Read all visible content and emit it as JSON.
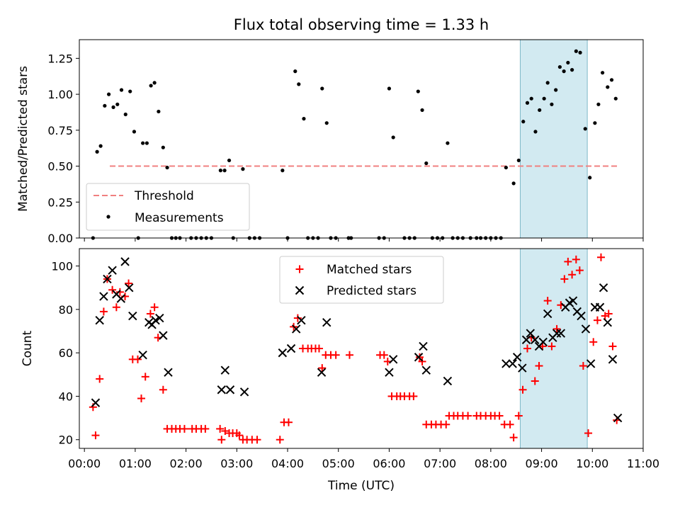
{
  "chart_data": [
    {
      "type": "scatter",
      "title": "Flux total observing time = 1.33 h",
      "ylabel": "Matched/Predicted stars",
      "ylim": [
        0,
        1.38
      ],
      "yticks": [
        "0.00",
        "0.25",
        "0.50",
        "0.75",
        "1.00",
        "1.25"
      ],
      "xlim": [
        -0.1,
        11.0
      ],
      "x_unit": "hours UTC",
      "threshold": {
        "name": "Threshold",
        "value": 0.5,
        "x_range": [
          0.5,
          10.5
        ],
        "color": "#f08080"
      },
      "highlight_span": {
        "x_range": [
          8.58,
          9.9
        ],
        "color": "#add8e6"
      },
      "legend_position": "lower-left",
      "series": [
        {
          "name": "Measurements",
          "color": "#000000",
          "marker": "dot",
          "points": [
            [
              0.17,
              0.0
            ],
            [
              0.25,
              0.6
            ],
            [
              0.32,
              0.64
            ],
            [
              0.4,
              0.92
            ],
            [
              0.48,
              1.0
            ],
            [
              0.57,
              0.91
            ],
            [
              0.65,
              0.93
            ],
            [
              0.73,
              1.03
            ],
            [
              0.81,
              0.86
            ],
            [
              0.9,
              1.02
            ],
            [
              0.98,
              0.74
            ],
            [
              1.06,
              0.0
            ],
            [
              1.15,
              0.66
            ],
            [
              1.23,
              0.66
            ],
            [
              1.31,
              1.06
            ],
            [
              1.38,
              1.08
            ],
            [
              1.46,
              0.88
            ],
            [
              1.55,
              0.63
            ],
            [
              1.63,
              0.49
            ],
            [
              1.72,
              0.0
            ],
            [
              1.8,
              0.0
            ],
            [
              1.88,
              0.0
            ],
            [
              2.1,
              0.0
            ],
            [
              2.2,
              0.0
            ],
            [
              2.3,
              0.0
            ],
            [
              2.4,
              0.0
            ],
            [
              2.5,
              0.0
            ],
            [
              2.68,
              0.47
            ],
            [
              2.76,
              0.47
            ],
            [
              2.85,
              0.54
            ],
            [
              2.93,
              0.0
            ],
            [
              3.12,
              0.48
            ],
            [
              3.25,
              0.0
            ],
            [
              3.35,
              0.0
            ],
            [
              3.45,
              0.0
            ],
            [
              3.9,
              0.47
            ],
            [
              4.0,
              0.0
            ],
            [
              4.15,
              1.16
            ],
            [
              4.22,
              1.07
            ],
            [
              4.32,
              0.83
            ],
            [
              4.4,
              0.0
            ],
            [
              4.5,
              0.0
            ],
            [
              4.6,
              0.0
            ],
            [
              4.68,
              1.04
            ],
            [
              4.77,
              0.8
            ],
            [
              4.85,
              0.0
            ],
            [
              4.95,
              0.0
            ],
            [
              5.2,
              0.0
            ],
            [
              5.25,
              0.0
            ],
            [
              5.8,
              0.0
            ],
            [
              5.9,
              0.0
            ],
            [
              6.0,
              1.04
            ],
            [
              6.08,
              0.7
            ],
            [
              6.3,
              0.0
            ],
            [
              6.4,
              0.0
            ],
            [
              6.5,
              0.0
            ],
            [
              6.57,
              1.02
            ],
            [
              6.65,
              0.89
            ],
            [
              6.73,
              0.52
            ],
            [
              6.85,
              0.0
            ],
            [
              6.95,
              0.0
            ],
            [
              7.05,
              0.0
            ],
            [
              7.15,
              0.66
            ],
            [
              7.25,
              0.0
            ],
            [
              7.35,
              0.0
            ],
            [
              7.45,
              0.0
            ],
            [
              7.6,
              0.0
            ],
            [
              7.72,
              0.0
            ],
            [
              7.8,
              0.0
            ],
            [
              7.9,
              0.0
            ],
            [
              8.0,
              0.0
            ],
            [
              8.1,
              0.0
            ],
            [
              8.2,
              0.0
            ],
            [
              8.3,
              0.49
            ],
            [
              8.45,
              0.38
            ],
            [
              8.55,
              0.54
            ],
            [
              8.64,
              0.81
            ],
            [
              8.72,
              0.94
            ],
            [
              8.8,
              0.97
            ],
            [
              8.88,
              0.74
            ],
            [
              8.96,
              0.89
            ],
            [
              9.05,
              0.97
            ],
            [
              9.12,
              1.08
            ],
            [
              9.2,
              0.93
            ],
            [
              9.28,
              1.03
            ],
            [
              9.36,
              1.19
            ],
            [
              9.44,
              1.16
            ],
            [
              9.52,
              1.22
            ],
            [
              9.6,
              1.17
            ],
            [
              9.68,
              1.3
            ],
            [
              9.76,
              1.29
            ],
            [
              9.86,
              0.76
            ],
            [
              9.95,
              0.42
            ],
            [
              10.05,
              0.8
            ],
            [
              10.12,
              0.93
            ],
            [
              10.2,
              1.15
            ],
            [
              10.3,
              1.05
            ],
            [
              10.38,
              1.1
            ],
            [
              10.46,
              0.97
            ]
          ]
        }
      ]
    },
    {
      "type": "scatter",
      "title": "",
      "xlabel": "Time (UTC)",
      "ylabel": "Count",
      "ylim": [
        16,
        108
      ],
      "yticks": [
        "20",
        "40",
        "60",
        "80",
        "100"
      ],
      "xlim": [
        -0.1,
        11.0
      ],
      "xticks": [
        "00:00",
        "01:00",
        "02:00",
        "03:00",
        "04:00",
        "05:00",
        "06:00",
        "07:00",
        "08:00",
        "09:00",
        "10:00",
        "11:00"
      ],
      "x_unit": "hours UTC",
      "highlight_span": {
        "x_range": [
          8.58,
          9.9
        ],
        "color": "#add8e6"
      },
      "legend_position": "upper-center",
      "series": [
        {
          "name": "Matched stars",
          "color": "#ff0000",
          "marker": "plus",
          "points": [
            [
              0.17,
              35
            ],
            [
              0.22,
              22
            ],
            [
              0.3,
              48
            ],
            [
              0.38,
              79
            ],
            [
              0.45,
              94
            ],
            [
              0.55,
              89
            ],
            [
              0.63,
              81
            ],
            [
              0.7,
              88
            ],
            [
              0.8,
              86
            ],
            [
              0.87,
              92
            ],
            [
              0.95,
              57
            ],
            [
              1.05,
              57
            ],
            [
              1.12,
              39
            ],
            [
              1.2,
              49
            ],
            [
              1.3,
              78
            ],
            [
              1.38,
              81
            ],
            [
              1.45,
              67
            ],
            [
              1.55,
              43
            ],
            [
              1.63,
              25
            ],
            [
              1.72,
              25
            ],
            [
              1.8,
              25
            ],
            [
              1.88,
              25
            ],
            [
              1.97,
              25
            ],
            [
              2.12,
              25
            ],
            [
              2.2,
              25
            ],
            [
              2.3,
              25
            ],
            [
              2.38,
              25
            ],
            [
              2.67,
              25
            ],
            [
              2.7,
              20
            ],
            [
              2.77,
              24
            ],
            [
              2.85,
              23
            ],
            [
              2.92,
              23
            ],
            [
              3.0,
              23
            ],
            [
              3.05,
              22
            ],
            [
              3.12,
              20
            ],
            [
              3.2,
              20
            ],
            [
              3.3,
              20
            ],
            [
              3.4,
              20
            ],
            [
              3.85,
              20
            ],
            [
              3.93,
              28
            ],
            [
              4.02,
              28
            ],
            [
              4.12,
              72
            ],
            [
              4.2,
              76
            ],
            [
              4.3,
              62
            ],
            [
              4.4,
              62
            ],
            [
              4.47,
              62
            ],
            [
              4.55,
              62
            ],
            [
              4.62,
              62
            ],
            [
              4.68,
              53
            ],
            [
              4.75,
              59
            ],
            [
              4.85,
              59
            ],
            [
              4.95,
              59
            ],
            [
              5.22,
              59
            ],
            [
              5.82,
              59
            ],
            [
              5.9,
              59
            ],
            [
              5.97,
              56
            ],
            [
              6.05,
              40
            ],
            [
              6.15,
              40
            ],
            [
              6.22,
              40
            ],
            [
              6.3,
              40
            ],
            [
              6.4,
              40
            ],
            [
              6.48,
              40
            ],
            [
              6.6,
              58
            ],
            [
              6.65,
              56
            ],
            [
              6.73,
              27
            ],
            [
              6.83,
              27
            ],
            [
              6.92,
              27
            ],
            [
              7.02,
              27
            ],
            [
              7.12,
              27
            ],
            [
              7.18,
              31
            ],
            [
              7.27,
              31
            ],
            [
              7.35,
              31
            ],
            [
              7.45,
              31
            ],
            [
              7.55,
              31
            ],
            [
              7.72,
              31
            ],
            [
              7.8,
              31
            ],
            [
              7.9,
              31
            ],
            [
              8.0,
              31
            ],
            [
              8.08,
              31
            ],
            [
              8.17,
              31
            ],
            [
              8.27,
              27
            ],
            [
              8.38,
              27
            ],
            [
              8.45,
              21
            ],
            [
              8.55,
              31
            ],
            [
              8.63,
              43
            ],
            [
              8.72,
              62
            ],
            [
              8.8,
              67
            ],
            [
              8.87,
              47
            ],
            [
              8.95,
              54
            ],
            [
              9.02,
              63
            ],
            [
              9.12,
              84
            ],
            [
              9.2,
              63
            ],
            [
              9.3,
              71
            ],
            [
              9.38,
              82
            ],
            [
              9.45,
              94
            ],
            [
              9.52,
              102
            ],
            [
              9.6,
              96
            ],
            [
              9.68,
              103
            ],
            [
              9.75,
              98
            ],
            [
              9.82,
              54
            ],
            [
              9.92,
              23
            ],
            [
              10.02,
              65
            ],
            [
              10.1,
              75
            ],
            [
              10.17,
              104
            ],
            [
              10.25,
              77
            ],
            [
              10.32,
              78
            ],
            [
              10.4,
              63
            ],
            [
              10.48,
              29
            ]
          ]
        },
        {
          "name": "Predicted stars",
          "color": "#000000",
          "marker": "cross",
          "points": [
            [
              0.22,
              37
            ],
            [
              0.3,
              75
            ],
            [
              0.38,
              86
            ],
            [
              0.45,
              94
            ],
            [
              0.55,
              98
            ],
            [
              0.63,
              87
            ],
            [
              0.72,
              85
            ],
            [
              0.8,
              102
            ],
            [
              0.88,
              90
            ],
            [
              0.95,
              77
            ],
            [
              1.15,
              59
            ],
            [
              1.27,
              74
            ],
            [
              1.33,
              73
            ],
            [
              1.4,
              75
            ],
            [
              1.48,
              76
            ],
            [
              1.55,
              68
            ],
            [
              1.65,
              51
            ],
            [
              2.7,
              43
            ],
            [
              2.77,
              52
            ],
            [
              2.87,
              43
            ],
            [
              3.15,
              42
            ],
            [
              3.9,
              60
            ],
            [
              4.07,
              62
            ],
            [
              4.17,
              71
            ],
            [
              4.27,
              75
            ],
            [
              4.67,
              51
            ],
            [
              4.77,
              74
            ],
            [
              6.0,
              51
            ],
            [
              6.08,
              57
            ],
            [
              6.58,
              58
            ],
            [
              6.67,
              63
            ],
            [
              6.73,
              52
            ],
            [
              7.15,
              47
            ],
            [
              8.3,
              55
            ],
            [
              8.43,
              55
            ],
            [
              8.52,
              58
            ],
            [
              8.62,
              53
            ],
            [
              8.7,
              66
            ],
            [
              8.78,
              69
            ],
            [
              8.87,
              66
            ],
            [
              8.95,
              63
            ],
            [
              9.03,
              65
            ],
            [
              9.12,
              78
            ],
            [
              9.22,
              67
            ],
            [
              9.3,
              69
            ],
            [
              9.38,
              69
            ],
            [
              9.47,
              81
            ],
            [
              9.55,
              83
            ],
            [
              9.62,
              84
            ],
            [
              9.7,
              79
            ],
            [
              9.78,
              77
            ],
            [
              9.87,
              71
            ],
            [
              9.97,
              55
            ],
            [
              10.05,
              81
            ],
            [
              10.15,
              81
            ],
            [
              10.22,
              90
            ],
            [
              10.3,
              74
            ],
            [
              10.4,
              57
            ],
            [
              10.5,
              30
            ]
          ]
        }
      ]
    }
  ]
}
